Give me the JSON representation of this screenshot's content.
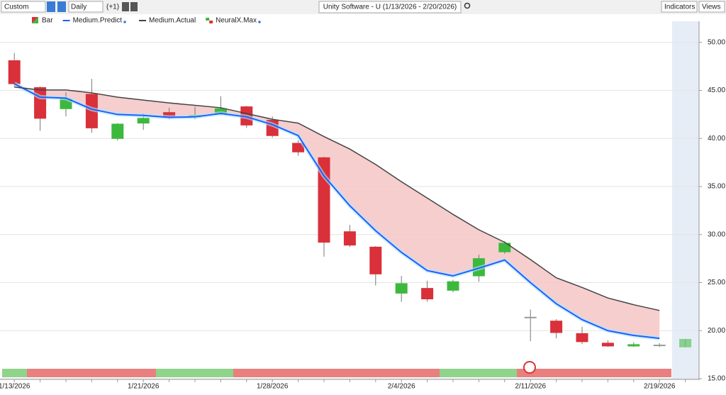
{
  "toolbar": {
    "period": "Custom",
    "interval": "Daily",
    "offset": "(+1)",
    "symbol": "Unity Software - U (1/13/2026 - 2/20/2026)",
    "indicators": "Indicators",
    "views": "Views"
  },
  "chart_data": {
    "type": "candlestick",
    "legend": [
      "Bar",
      "NeuralX.Max"
    ],
    "categories": [
      "1/13/2026",
      null,
      null,
      null,
      null,
      "1/21/2026",
      null,
      null,
      null,
      null,
      "1/28/2026",
      null,
      null,
      null,
      null,
      "2/4/2026",
      null,
      null,
      null,
      null,
      "2/11/2026",
      null,
      null,
      null,
      null,
      "2/19/2026",
      null
    ],
    "open": [
      48.1,
      45.3,
      43.1,
      44.6,
      40.0,
      41.6,
      42.7,
      42.25,
      42.6,
      43.3,
      41.9,
      39.5,
      38.0,
      30.3,
      28.7,
      23.9,
      24.4,
      24.2,
      25.7,
      28.2,
      21.4,
      21.0,
      19.7,
      18.7,
      18.4,
      18.5,
      18.3
    ],
    "high": [
      48.9,
      45.4,
      44.8,
      46.2,
      41.6,
      42.6,
      43.2,
      43.3,
      44.4,
      43.4,
      42.3,
      39.8,
      38.1,
      31.0,
      28.8,
      25.7,
      25.2,
      25.3,
      27.9,
      29.3,
      22.2,
      21.2,
      20.4,
      19.0,
      18.8,
      18.7,
      19.1
    ],
    "low": [
      45.4,
      40.8,
      42.3,
      40.6,
      39.8,
      40.9,
      42.0,
      42.0,
      42.4,
      41.1,
      40.1,
      38.2,
      27.7,
      28.7,
      24.7,
      23.0,
      23.0,
      24.0,
      25.1,
      28.0,
      18.9,
      19.2,
      18.6,
      18.3,
      18.3,
      18.3,
      18.3
    ],
    "close": [
      45.7,
      42.1,
      44.1,
      41.1,
      41.5,
      42.1,
      42.2,
      42.4,
      43.1,
      41.4,
      40.3,
      38.6,
      29.2,
      28.9,
      25.9,
      24.9,
      23.3,
      25.1,
      27.5,
      29.1,
      21.4,
      19.8,
      18.85,
      18.4,
      18.55,
      18.5,
      19.1
    ],
    "up_color": "#3cb93c",
    "down_color": "#d9303a",
    "flat_color": "#999999",
    "series": [
      {
        "name": "Medium.Predict",
        "color": "#1f5fff",
        "values": [
          45.7,
          44.3,
          44.2,
          43.05,
          42.5,
          42.4,
          42.2,
          42.25,
          42.6,
          42.25,
          41.45,
          40.3,
          36.1,
          33.0,
          30.4,
          28.15,
          26.25,
          25.7,
          26.5,
          27.35,
          25.0,
          22.8,
          21.15,
          20.0,
          19.5,
          19.2,
          null
        ]
      },
      {
        "name": "Medium.Actual",
        "color": "#444444",
        "values": [
          45.35,
          45.05,
          45.05,
          44.75,
          44.3,
          44.0,
          43.7,
          43.45,
          43.2,
          42.6,
          42.0,
          41.6,
          40.2,
          38.9,
          37.3,
          35.5,
          33.8,
          32.1,
          30.5,
          29.2,
          27.4,
          25.5,
          24.5,
          23.4,
          22.7,
          22.1,
          null
        ]
      }
    ],
    "fill_color": "#f4c6c6",
    "ylim": [
      15,
      52.2
    ],
    "yticks": [
      {
        "value": 15,
        "label": "15.00"
      },
      {
        "value": 20,
        "label": "20.00"
      },
      {
        "value": 25,
        "label": "25.00"
      },
      {
        "value": 30,
        "label": "30.00"
      },
      {
        "value": 35,
        "label": "35.00"
      },
      {
        "value": 40,
        "label": "40.00"
      },
      {
        "value": 45,
        "label": "45.00"
      },
      {
        "value": 50,
        "label": "50.00"
      }
    ],
    "grid": true
  }
}
